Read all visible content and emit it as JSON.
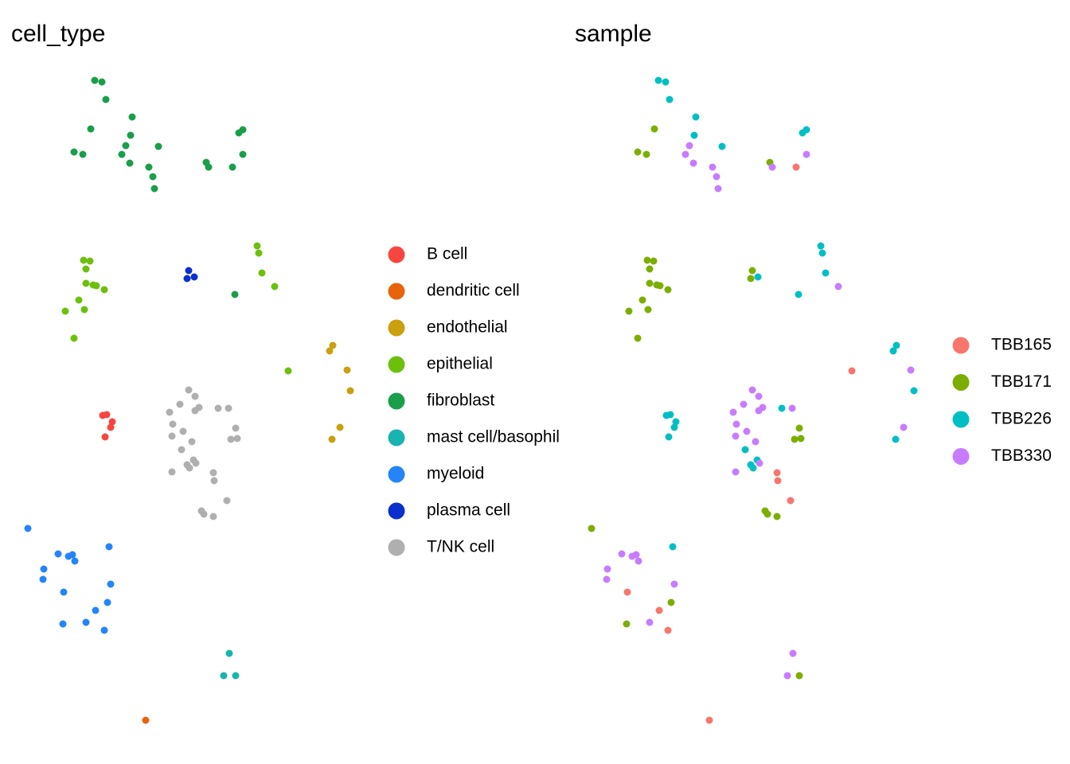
{
  "chart_data": [
    {
      "type": "scatter",
      "title": "cell_type",
      "xlim": [
        20,
        450
      ],
      "ylim": [
        40,
        870
      ],
      "legend": "right",
      "series": [
        {
          "name": "B cell",
          "color": "#F8453F",
          "x": [
            129,
            134,
            141,
            139,
            132
          ],
          "y": [
            438,
            439,
            430,
            423,
            411
          ]
        },
        {
          "name": "dendritic cell",
          "color": "#E8640C",
          "x": [
            183
          ],
          "y": [
            55
          ]
        },
        {
          "name": "endothelial",
          "color": "#C9A00D",
          "x": [
            418,
            414,
            436,
            440,
            427,
            417
          ],
          "y": [
            526,
            519,
            495,
            469,
            423,
            408
          ]
        },
        {
          "name": "epithelial",
          "color": "#6CC00D",
          "x": [
            105,
            113,
            108,
            108,
            117,
            121,
            131,
            99,
            82,
            106,
            93,
            323,
            325,
            329,
            345,
            362
          ],
          "y": [
            633,
            632,
            622,
            604,
            602,
            601,
            596,
            583,
            569,
            571,
            535,
            651,
            642,
            617,
            600,
            494
          ]
        },
        {
          "name": "fibroblast",
          "color": "#1A9E4A",
          "x": [
            119,
            128,
            133,
            166,
            114,
            164,
            300,
            305,
            93,
            104,
            153,
            199,
            163,
            187,
            305,
            259,
            262,
            292,
            192,
            194,
            158,
            295
          ],
          "y": [
            859,
            857,
            835,
            813,
            798,
            790,
            793,
            797,
            769,
            766,
            766,
            776,
            755,
            750,
            766,
            756,
            750,
            750,
            738,
            723,
            777,
            590
          ]
        },
        {
          "name": "mast cell/basophil",
          "color": "#19B4B0",
          "x": [
            288,
            281,
            296
          ],
          "y": [
            139,
            111,
            111
          ]
        },
        {
          "name": "myeloid",
          "color": "#2584F8",
          "x": [
            35,
            137,
            73,
            86,
            91,
            94,
            55,
            54,
            139,
            80,
            135,
            120,
            79,
            108,
            131
          ],
          "y": [
            296,
            273,
            264,
            261,
            263,
            255,
            245,
            232,
            226,
            216,
            203,
            193,
            176,
            178,
            168
          ]
        },
        {
          "name": "plasma cell",
          "color": "#0A2FCC",
          "x": [
            237,
            244,
            235
          ],
          "y": [
            620,
            612,
            610
          ]
        },
        {
          "name": "T/NK cell",
          "color": "#AFAFAF",
          "x": [
            237,
            245,
            226,
            250,
            274,
            287,
            213,
            245,
            217,
            296,
            230,
            216,
            290,
            298,
            241,
            228,
            243,
            235,
            238,
            246,
            216,
            268,
            269,
            285,
            253,
            256,
            268
          ],
          "y": [
            470,
            462,
            452,
            448,
            447,
            447,
            442,
            444,
            427,
            422,
            418,
            412,
            408,
            409,
            405,
            395,
            382,
            376,
            372,
            378,
            367,
            366,
            356,
            331,
            318,
            314,
            311
          ]
        }
      ]
    },
    {
      "type": "scatter",
      "title": "sample",
      "xlim": [
        20,
        450
      ],
      "ylim": [
        40,
        870
      ],
      "legend": "right",
      "series": [
        {
          "name": "TBB165",
          "color": "#F8766D",
          "x": [
            292,
            362,
            183,
            268,
            269,
            285,
            80,
            120,
            131
          ],
          "y": [
            750,
            494,
            55,
            366,
            356,
            331,
            216,
            193,
            168
          ]
        },
        {
          "name": "TBB171",
          "color": "#7CAE00",
          "x": [
            114,
            93,
            104,
            259,
            105,
            113,
            108,
            108,
            117,
            121,
            131,
            99,
            82,
            106,
            93,
            237,
            235,
            296,
            290,
            298,
            253,
            256,
            268,
            35,
            135,
            79,
            296
          ],
          "y": [
            798,
            769,
            766,
            756,
            633,
            632,
            622,
            604,
            602,
            601,
            596,
            583,
            569,
            571,
            535,
            620,
            610,
            422,
            408,
            409,
            318,
            314,
            311,
            296,
            203,
            176,
            111
          ]
        },
        {
          "name": "TBB226",
          "color": "#00BFC4",
          "x": [
            119,
            128,
            133,
            166,
            164,
            300,
            305,
            199,
            295,
            323,
            325,
            329,
            244,
            418,
            414,
            440,
            417,
            129,
            134,
            141,
            139,
            132,
            274,
            228,
            243,
            235,
            238,
            137
          ],
          "y": [
            859,
            857,
            835,
            813,
            790,
            793,
            797,
            776,
            590,
            651,
            642,
            617,
            612,
            526,
            519,
            469,
            408,
            438,
            439,
            430,
            423,
            411,
            447,
            395,
            382,
            376,
            372,
            273
          ]
        },
        {
          "name": "TBB330",
          "color": "#C77CFF",
          "x": [
            153,
            163,
            187,
            305,
            262,
            192,
            194,
            158,
            345,
            436,
            427,
            237,
            245,
            226,
            250,
            287,
            213,
            245,
            217,
            230,
            216,
            241,
            246,
            216,
            73,
            86,
            91,
            94,
            55,
            54,
            139,
            108,
            288,
            281
          ],
          "y": [
            766,
            755,
            750,
            766,
            750,
            738,
            723,
            777,
            600,
            495,
            423,
            470,
            462,
            452,
            448,
            447,
            442,
            444,
            427,
            418,
            412,
            405,
            378,
            367,
            264,
            261,
            263,
            255,
            245,
            232,
            226,
            178,
            139,
            111
          ]
        }
      ]
    }
  ]
}
